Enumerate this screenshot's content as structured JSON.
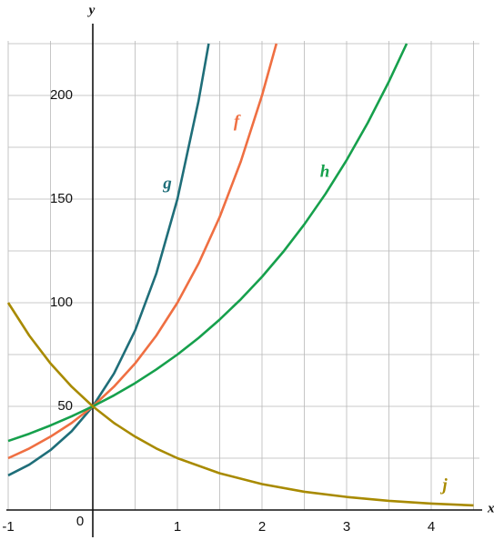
{
  "chart_data": {
    "type": "line",
    "xlabel": "x",
    "ylabel": "y",
    "xlim": [
      -1,
      4.57
    ],
    "ylim": [
      0,
      232.9
    ],
    "xticks": [
      -1,
      0,
      1,
      2,
      3,
      4
    ],
    "yticks": [
      50,
      100,
      150,
      200
    ],
    "xgrid": [
      -1,
      -0.5,
      0.5,
      1,
      1.5,
      2,
      2.5,
      3,
      3.5,
      4,
      4.5
    ],
    "ygrid": [
      25,
      50,
      75,
      100,
      125,
      150,
      175,
      200,
      225
    ],
    "grid": true,
    "series": [
      {
        "name": "g",
        "color": "#1f6e79",
        "x": [
          -1,
          -0.75,
          -0.5,
          -0.25,
          0,
          0.25,
          0.5,
          0.75,
          1,
          1.25,
          1.37
        ],
        "values": [
          16.7,
          21.9,
          28.9,
          38.0,
          50,
          65.8,
          86.6,
          114.0,
          150,
          197.4,
          225
        ]
      },
      {
        "name": "f",
        "color": "#ef6f42",
        "x": [
          -1,
          -0.75,
          -0.5,
          -0.25,
          0,
          0.25,
          0.5,
          0.75,
          1,
          1.25,
          1.5,
          1.75,
          2,
          2.17
        ],
        "values": [
          25,
          29.7,
          35.4,
          42.0,
          50,
          59.5,
          70.7,
          84.1,
          100,
          118.9,
          141.4,
          168.2,
          200,
          225
        ]
      },
      {
        "name": "h",
        "color": "#16a04c",
        "x": [
          -1,
          -0.75,
          -0.5,
          -0.25,
          0,
          0.25,
          0.5,
          0.75,
          1,
          1.25,
          1.5,
          1.75,
          2,
          2.25,
          2.5,
          2.75,
          3,
          3.25,
          3.5,
          3.71
        ],
        "values": [
          33.3,
          36.8,
          40.8,
          45.2,
          50,
          55.3,
          61.2,
          67.8,
          75,
          83.0,
          91.9,
          101.7,
          112.5,
          124.5,
          137.8,
          152.5,
          168.8,
          186.8,
          206.7,
          225
        ]
      },
      {
        "name": "j",
        "color": "#a88a00",
        "x": [
          -1,
          -0.75,
          -0.5,
          -0.25,
          0,
          0.25,
          0.5,
          0.75,
          1,
          1.5,
          2,
          2.5,
          3,
          3.5,
          4,
          4.5
        ],
        "values": [
          100,
          84.1,
          70.7,
          59.5,
          50,
          42.0,
          35.4,
          29.7,
          25,
          17.7,
          12.5,
          8.8,
          6.3,
          4.4,
          3.1,
          2.2
        ]
      }
    ]
  }
}
